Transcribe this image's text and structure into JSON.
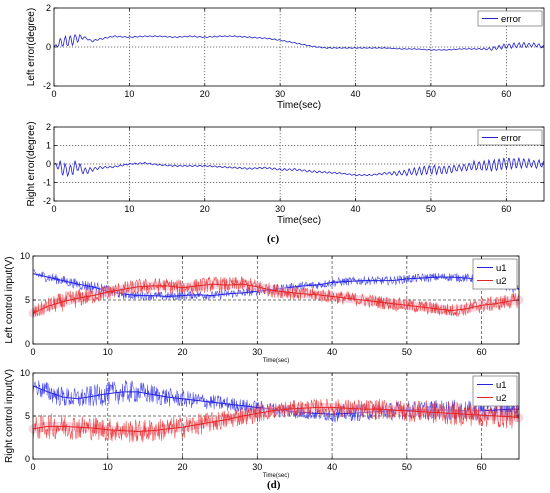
{
  "captions": {
    "c": "(c)",
    "d": "(d)"
  },
  "colors": {
    "error": "#1f1fd0",
    "u1": "#2323e6",
    "u2": "#e62323",
    "u2_halo": "#f3b3c6",
    "axis": "#000000",
    "grid": "#444444"
  },
  "chart_data": [
    {
      "type": "line",
      "ylabel": "Left error(degree)",
      "xlabel": "Time(sec)",
      "xlim": [
        0,
        65
      ],
      "ylim": [
        -2,
        2
      ],
      "xticks": [
        0,
        10,
        20,
        30,
        40,
        50,
        60
      ],
      "yticks": [
        -2,
        0,
        2
      ],
      "grid": true,
      "legend_position": "top-right",
      "series": [
        {
          "name": "error",
          "x": [
            0,
            1,
            2,
            3,
            4,
            5,
            6,
            8,
            10,
            12,
            14,
            16,
            18,
            20,
            22,
            24,
            26,
            28,
            30,
            32,
            34,
            36,
            38,
            40,
            42,
            44,
            46,
            48,
            50,
            52,
            54,
            56,
            58,
            60,
            62,
            64,
            65
          ],
          "y": [
            0.0,
            0.25,
            0.3,
            0.45,
            0.5,
            0.3,
            0.4,
            0.55,
            0.5,
            0.55,
            0.55,
            0.5,
            0.55,
            0.5,
            0.55,
            0.55,
            0.5,
            0.45,
            0.35,
            0.2,
            0.05,
            -0.05,
            -0.05,
            -0.05,
            -0.05,
            -0.05,
            -0.1,
            -0.1,
            -0.15,
            -0.15,
            -0.1,
            -0.1,
            -0.1,
            0.05,
            0.1,
            0.1,
            0.0
          ],
          "noise": [
            0,
            0.3,
            0.35,
            0.3,
            0.05,
            0.05,
            0.05,
            0.03,
            0.03,
            0.03,
            0.03,
            0.03,
            0.03,
            0.03,
            0.03,
            0.03,
            0.03,
            0.03,
            0.03,
            0.03,
            0.03,
            0.03,
            0.02,
            0.02,
            0.02,
            0.02,
            0.02,
            0.02,
            0.02,
            0.02,
            0.02,
            0.02,
            0.08,
            0.15,
            0.15,
            0.12,
            0.1
          ]
        }
      ]
    },
    {
      "type": "line",
      "ylabel": "Right error(degree)",
      "xlabel": "Time(sec)",
      "xlim": [
        0,
        65
      ],
      "ylim": [
        -2,
        2
      ],
      "xticks": [
        0,
        10,
        20,
        30,
        40,
        50,
        60
      ],
      "yticks": [
        -2,
        -1,
        0,
        1,
        2
      ],
      "grid": true,
      "legend_position": "top-right",
      "series": [
        {
          "name": "error",
          "x": [
            0,
            1,
            2,
            3,
            4,
            5,
            6,
            8,
            10,
            12,
            14,
            16,
            18,
            20,
            22,
            24,
            26,
            28,
            30,
            32,
            34,
            36,
            38,
            40,
            42,
            44,
            46,
            48,
            50,
            52,
            54,
            56,
            58,
            60,
            62,
            64,
            65
          ],
          "y": [
            0.0,
            -0.2,
            -0.4,
            -0.1,
            -0.4,
            -0.3,
            -0.2,
            -0.15,
            0.0,
            0.05,
            -0.05,
            -0.1,
            -0.1,
            -0.1,
            -0.15,
            -0.2,
            -0.25,
            -0.2,
            -0.3,
            -0.3,
            -0.4,
            -0.45,
            -0.5,
            -0.6,
            -0.6,
            -0.5,
            -0.5,
            -0.4,
            -0.3,
            -0.3,
            -0.2,
            -0.1,
            -0.1,
            0.05,
            0.05,
            0.0,
            0.0
          ],
          "noise": [
            0,
            0.45,
            0.4,
            0.35,
            0.2,
            0.15,
            0.08,
            0.05,
            0.04,
            0.04,
            0.04,
            0.04,
            0.04,
            0.04,
            0.04,
            0.04,
            0.05,
            0.05,
            0.06,
            0.06,
            0.06,
            0.05,
            0.04,
            0.04,
            0.04,
            0.06,
            0.15,
            0.25,
            0.3,
            0.25,
            0.2,
            0.3,
            0.35,
            0.35,
            0.3,
            0.25,
            0.2
          ]
        }
      ]
    },
    {
      "type": "line",
      "ylabel": "Left control input(V)",
      "xlabel": "Time(sec)",
      "xlim": [
        0,
        65
      ],
      "ylim": [
        0,
        10
      ],
      "xticks": [
        0,
        10,
        20,
        30,
        40,
        50,
        60
      ],
      "yticks": [
        0,
        5,
        10
      ],
      "grid": true,
      "legend_position": "top-right",
      "series": [
        {
          "name": "u1",
          "x": [
            0,
            2,
            4,
            6,
            8,
            10,
            12,
            14,
            16,
            18,
            20,
            22,
            24,
            26,
            28,
            30,
            32,
            34,
            36,
            38,
            40,
            42,
            44,
            46,
            48,
            50,
            52,
            54,
            56,
            58,
            60,
            62,
            64,
            65
          ],
          "y": [
            8.0,
            7.6,
            7.2,
            6.8,
            6.5,
            6.0,
            5.7,
            5.5,
            5.5,
            5.4,
            5.5,
            5.6,
            5.5,
            5.7,
            5.8,
            6.0,
            6.2,
            6.4,
            6.6,
            6.7,
            7.0,
            7.1,
            7.2,
            7.2,
            7.2,
            7.4,
            7.5,
            7.6,
            7.6,
            7.5,
            7.3,
            6.8,
            6.4,
            6.3
          ],
          "noise": [
            0.5,
            0.6,
            0.6,
            0.6,
            0.7,
            0.7,
            0.6,
            0.5,
            0.5,
            0.5,
            0.5,
            0.5,
            0.5,
            0.5,
            0.5,
            0.5,
            0.5,
            0.5,
            0.5,
            0.5,
            0.5,
            0.5,
            0.5,
            0.5,
            0.5,
            0.5,
            0.5,
            0.5,
            0.5,
            0.5,
            0.5,
            0.5,
            0.6,
            0.6
          ]
        },
        {
          "name": "u2",
          "x": [
            0,
            2,
            4,
            6,
            8,
            10,
            12,
            14,
            16,
            18,
            20,
            22,
            24,
            26,
            28,
            30,
            32,
            34,
            36,
            38,
            40,
            42,
            44,
            46,
            48,
            50,
            52,
            54,
            56,
            58,
            60,
            62,
            64,
            65
          ],
          "y": [
            3.5,
            4.3,
            4.8,
            5.2,
            5.5,
            5.9,
            6.2,
            6.5,
            6.6,
            6.6,
            6.4,
            6.6,
            6.8,
            6.7,
            6.8,
            6.5,
            6.1,
            5.9,
            5.7,
            5.6,
            5.4,
            5.2,
            5.0,
            4.8,
            4.6,
            4.4,
            4.2,
            4.0,
            3.8,
            4.0,
            4.4,
            4.6,
            4.9,
            5.0
          ],
          "noise": [
            0.8,
            1.0,
            1.1,
            1.1,
            1.0,
            0.9,
            0.9,
            0.9,
            0.9,
            0.9,
            0.9,
            0.9,
            0.9,
            0.9,
            0.9,
            0.9,
            0.8,
            0.8,
            0.8,
            0.8,
            0.8,
            0.8,
            0.8,
            0.8,
            0.8,
            0.8,
            0.8,
            0.8,
            0.8,
            0.8,
            0.9,
            0.9,
            0.9,
            0.9
          ]
        }
      ]
    },
    {
      "type": "line",
      "ylabel": "Right control input(V)",
      "xlabel": "Time(sec)",
      "xlim": [
        0,
        65
      ],
      "ylim": [
        0,
        10
      ],
      "xticks": [
        0,
        10,
        20,
        30,
        40,
        50,
        60
      ],
      "yticks": [
        0,
        5,
        10
      ],
      "grid": true,
      "legend_position": "top-right",
      "series": [
        {
          "name": "u1",
          "x": [
            0,
            2,
            4,
            6,
            8,
            10,
            12,
            14,
            16,
            18,
            20,
            22,
            24,
            26,
            28,
            30,
            32,
            34,
            36,
            38,
            40,
            42,
            44,
            46,
            48,
            50,
            52,
            54,
            56,
            58,
            60,
            62,
            64,
            65
          ],
          "y": [
            8.5,
            7.8,
            7.2,
            7.0,
            7.3,
            7.6,
            7.8,
            7.8,
            7.5,
            7.2,
            7.0,
            6.8,
            6.6,
            6.4,
            6.2,
            6.0,
            5.8,
            5.6,
            5.4,
            5.3,
            5.2,
            5.3,
            5.4,
            5.5,
            5.6,
            5.7,
            5.7,
            5.7,
            5.7,
            5.6,
            5.6,
            5.7,
            5.8,
            5.8
          ],
          "noise": [
            1.0,
            1.2,
            1.2,
            1.2,
            1.3,
            1.4,
            1.4,
            1.3,
            1.2,
            1.1,
            1.0,
            1.0,
            0.9,
            0.9,
            0.8,
            0.8,
            0.8,
            0.8,
            0.8,
            0.8,
            0.9,
            0.9,
            1.0,
            1.0,
            1.1,
            1.1,
            1.1,
            1.2,
            1.2,
            1.2,
            1.2,
            1.2,
            1.2,
            1.2
          ]
        },
        {
          "name": "u2",
          "x": [
            0,
            2,
            4,
            6,
            8,
            10,
            12,
            14,
            16,
            18,
            20,
            22,
            24,
            26,
            28,
            30,
            32,
            34,
            36,
            38,
            40,
            42,
            44,
            46,
            48,
            50,
            52,
            54,
            56,
            58,
            60,
            62,
            64,
            65
          ],
          "y": [
            3.5,
            3.8,
            3.8,
            3.7,
            3.6,
            3.4,
            3.3,
            3.2,
            3.3,
            3.5,
            3.7,
            4.0,
            4.3,
            4.6,
            5.0,
            5.3,
            5.6,
            5.8,
            5.9,
            6.0,
            6.0,
            5.9,
            5.8,
            5.8,
            5.7,
            5.6,
            5.5,
            5.4,
            5.3,
            5.2,
            5.1,
            5.0,
            4.9,
            4.8
          ],
          "noise": [
            1.4,
            1.5,
            1.5,
            1.5,
            1.4,
            1.4,
            1.4,
            1.4,
            1.4,
            1.4,
            1.3,
            1.3,
            1.2,
            1.2,
            1.1,
            1.1,
            1.0,
            1.0,
            1.0,
            1.0,
            1.0,
            1.1,
            1.1,
            1.2,
            1.2,
            1.3,
            1.3,
            1.4,
            1.4,
            1.4,
            1.4,
            1.4,
            1.4,
            1.4
          ]
        }
      ]
    }
  ]
}
